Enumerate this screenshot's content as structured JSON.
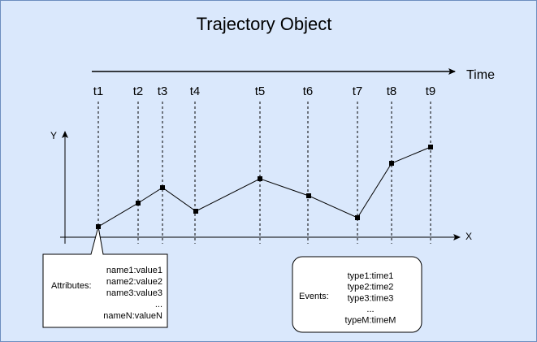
{
  "title": "Trajectory Object",
  "time_axis": {
    "label": "Time",
    "ticks": [
      "t1",
      "t2",
      "t3",
      "t4",
      "t5",
      "t6",
      "t7",
      "t8",
      "t9"
    ]
  },
  "axes": {
    "y_label": "Y",
    "x_label": "X"
  },
  "attributes_box": {
    "label": "Attributes:",
    "lines": [
      "name1:value1",
      "name2:value2",
      "name3:value3",
      "...",
      "nameN:valueN"
    ]
  },
  "events_box": {
    "label": "Events:",
    "lines": [
      "type1:time1",
      "type2:time2",
      "type3:time3",
      "...",
      "typeM:timeM"
    ]
  }
}
